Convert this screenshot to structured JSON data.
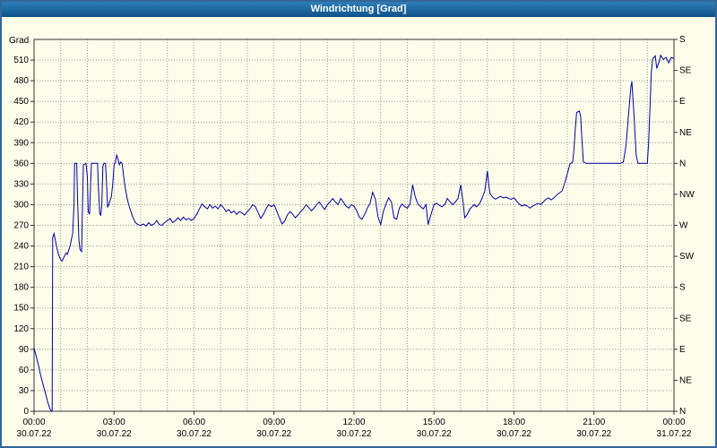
{
  "window": {
    "title": "Windrichtung [Grad]"
  },
  "colors": {
    "background": "#FDFDEB",
    "border": "#336699",
    "titlebar_start": "#2F7EB8",
    "titlebar_end": "#0E5288",
    "title_text": "#FFFFFF",
    "line": "#0000A8",
    "grid": "#999999",
    "axis": "#333333",
    "tick_text": "#000000"
  },
  "chart_data": {
    "type": "line",
    "title": "Windrichtung [Grad]",
    "ylabel_left": "Grad",
    "xlabel": "",
    "grid": "dashed",
    "legend": "none",
    "ylim": [
      0,
      540
    ],
    "y_grid_step": 30,
    "xlim_hours": [
      0,
      24
    ],
    "x_minor_grid_hours": 1,
    "y_left_ticks": [
      0,
      30,
      60,
      90,
      120,
      150,
      180,
      210,
      240,
      270,
      300,
      330,
      360,
      390,
      420,
      450,
      480,
      510
    ],
    "y_right_ticks": [
      {
        "value": 0,
        "label": "N"
      },
      {
        "value": 45,
        "label": "NE"
      },
      {
        "value": 90,
        "label": "E"
      },
      {
        "value": 135,
        "label": "SE"
      },
      {
        "value": 180,
        "label": "S"
      },
      {
        "value": 225,
        "label": "SW"
      },
      {
        "value": 270,
        "label": "W"
      },
      {
        "value": 315,
        "label": "NW"
      },
      {
        "value": 360,
        "label": "N"
      },
      {
        "value": 405,
        "label": "NE"
      },
      {
        "value": 450,
        "label": "E"
      },
      {
        "value": 495,
        "label": "SE"
      },
      {
        "value": 540,
        "label": "S"
      }
    ],
    "x_major_ticks": [
      {
        "hour": 0,
        "time": "00:00",
        "date": "30.07.22"
      },
      {
        "hour": 3,
        "time": "03:00",
        "date": "30.07.22"
      },
      {
        "hour": 6,
        "time": "06:00",
        "date": "30.07.22"
      },
      {
        "hour": 9,
        "time": "09:00",
        "date": "30.07.22"
      },
      {
        "hour": 12,
        "time": "12:00",
        "date": "30.07.22"
      },
      {
        "hour": 15,
        "time": "15:00",
        "date": "30.07.22"
      },
      {
        "hour": 18,
        "time": "18:00",
        "date": "30.07.22"
      },
      {
        "hour": 21,
        "time": "21:00",
        "date": "30.07.22"
      },
      {
        "hour": 24,
        "time": "00:00",
        "date": "31.07.22"
      }
    ],
    "series": [
      {
        "name": "windrichtung",
        "points": [
          [
            0,
            92
          ],
          [
            0.08,
            80
          ],
          [
            0.17,
            66
          ],
          [
            0.25,
            52
          ],
          [
            0.33,
            40
          ],
          [
            0.42,
            27
          ],
          [
            0.5,
            15
          ],
          [
            0.58,
            5
          ],
          [
            0.65,
            0
          ],
          [
            0.68,
            0
          ],
          [
            0.7,
            252
          ],
          [
            0.75,
            258
          ],
          [
            0.8,
            248
          ],
          [
            0.85,
            238
          ],
          [
            0.9,
            230
          ],
          [
            0.95,
            224
          ],
          [
            1,
            220
          ],
          [
            1.05,
            218
          ],
          [
            1.1,
            222
          ],
          [
            1.15,
            226
          ],
          [
            1.2,
            230
          ],
          [
            1.25,
            228
          ],
          [
            1.3,
            234
          ],
          [
            1.35,
            240
          ],
          [
            1.4,
            250
          ],
          [
            1.45,
            258
          ],
          [
            1.5,
            300
          ],
          [
            1.52,
            360
          ],
          [
            1.6,
            360
          ],
          [
            1.63,
            310
          ],
          [
            1.68,
            250
          ],
          [
            1.72,
            235
          ],
          [
            1.78,
            232
          ],
          [
            1.82,
            300
          ],
          [
            1.85,
            358
          ],
          [
            1.95,
            360
          ],
          [
            2,
            340
          ],
          [
            2.03,
            290
          ],
          [
            2.08,
            286
          ],
          [
            2.12,
            330
          ],
          [
            2.15,
            360
          ],
          [
            2.38,
            360
          ],
          [
            2.42,
            320
          ],
          [
            2.46,
            288
          ],
          [
            2.5,
            284
          ],
          [
            2.54,
            300
          ],
          [
            2.58,
            356
          ],
          [
            2.62,
            360
          ],
          [
            2.68,
            360
          ],
          [
            2.72,
            330
          ],
          [
            2.76,
            296
          ],
          [
            2.8,
            300
          ],
          [
            2.85,
            306
          ],
          [
            2.9,
            312
          ],
          [
            2.95,
            330
          ],
          [
            3,
            358
          ],
          [
            3.05,
            362
          ],
          [
            3.1,
            372
          ],
          [
            3.15,
            366
          ],
          [
            3.2,
            358
          ],
          [
            3.25,
            362
          ],
          [
            3.3,
            360
          ],
          [
            3.35,
            344
          ],
          [
            3.4,
            330
          ],
          [
            3.45,
            318
          ],
          [
            3.5,
            308
          ],
          [
            3.55,
            300
          ],
          [
            3.6,
            294
          ],
          [
            3.65,
            288
          ],
          [
            3.7,
            282
          ],
          [
            3.75,
            278
          ],
          [
            3.8,
            274
          ],
          [
            3.9,
            271
          ],
          [
            4,
            270
          ],
          [
            4.1,
            272
          ],
          [
            4.2,
            269
          ],
          [
            4.3,
            274
          ],
          [
            4.4,
            270
          ],
          [
            4.5,
            272
          ],
          [
            4.6,
            277
          ],
          [
            4.7,
            271
          ],
          [
            4.8,
            270
          ],
          [
            4.9,
            274
          ],
          [
            5,
            277
          ],
          [
            5.1,
            280
          ],
          [
            5.2,
            274
          ],
          [
            5.3,
            277
          ],
          [
            5.4,
            281
          ],
          [
            5.5,
            277
          ],
          [
            5.6,
            282
          ],
          [
            5.7,
            278
          ],
          [
            5.8,
            280
          ],
          [
            5.9,
            277
          ],
          [
            6,
            280
          ],
          [
            6.1,
            286
          ],
          [
            6.2,
            294
          ],
          [
            6.3,
            301
          ],
          [
            6.4,
            297
          ],
          [
            6.5,
            294
          ],
          [
            6.6,
            300
          ],
          [
            6.7,
            295
          ],
          [
            6.8,
            298
          ],
          [
            6.9,
            294
          ],
          [
            7,
            300
          ],
          [
            7.1,
            296
          ],
          [
            7.2,
            290
          ],
          [
            7.3,
            293
          ],
          [
            7.4,
            288
          ],
          [
            7.5,
            291
          ],
          [
            7.6,
            286
          ],
          [
            7.7,
            290
          ],
          [
            7.8,
            288
          ],
          [
            7.9,
            285
          ],
          [
            8,
            290
          ],
          [
            8.1,
            294
          ],
          [
            8.2,
            300
          ],
          [
            8.3,
            297
          ],
          [
            8.4,
            289
          ],
          [
            8.5,
            280
          ],
          [
            8.6,
            286
          ],
          [
            8.7,
            294
          ],
          [
            8.8,
            300
          ],
          [
            8.9,
            297
          ],
          [
            9,
            300
          ],
          [
            9.1,
            291
          ],
          [
            9.2,
            281
          ],
          [
            9.3,
            272
          ],
          [
            9.4,
            276
          ],
          [
            9.5,
            285
          ],
          [
            9.6,
            290
          ],
          [
            9.7,
            286
          ],
          [
            9.8,
            281
          ],
          [
            9.9,
            285
          ],
          [
            10,
            290
          ],
          [
            10.1,
            294
          ],
          [
            10.2,
            300
          ],
          [
            10.3,
            296
          ],
          [
            10.4,
            291
          ],
          [
            10.5,
            295
          ],
          [
            10.6,
            300
          ],
          [
            10.7,
            304
          ],
          [
            10.8,
            298
          ],
          [
            10.9,
            293
          ],
          [
            11,
            300
          ],
          [
            11.1,
            304
          ],
          [
            11.2,
            309
          ],
          [
            11.3,
            304
          ],
          [
            11.4,
            300
          ],
          [
            11.5,
            309
          ],
          [
            11.6,
            304
          ],
          [
            11.7,
            298
          ],
          [
            11.8,
            295
          ],
          [
            11.9,
            300
          ],
          [
            12,
            298
          ],
          [
            12.1,
            291
          ],
          [
            12.2,
            282
          ],
          [
            12.3,
            279
          ],
          [
            12.4,
            286
          ],
          [
            12.5,
            295
          ],
          [
            12.6,
            302
          ],
          [
            12.7,
            318
          ],
          [
            12.8,
            308
          ],
          [
            12.9,
            282
          ],
          [
            13,
            271
          ],
          [
            13.1,
            290
          ],
          [
            13.2,
            301
          ],
          [
            13.3,
            310
          ],
          [
            13.4,
            304
          ],
          [
            13.5,
            281
          ],
          [
            13.6,
            279
          ],
          [
            13.7,
            295
          ],
          [
            13.8,
            301
          ],
          [
            13.9,
            297
          ],
          [
            14,
            295
          ],
          [
            14.1,
            301
          ],
          [
            14.2,
            329
          ],
          [
            14.3,
            311
          ],
          [
            14.4,
            301
          ],
          [
            14.5,
            297
          ],
          [
            14.6,
            294
          ],
          [
            14.7,
            300
          ],
          [
            14.78,
            271
          ],
          [
            14.85,
            281
          ],
          [
            14.95,
            294
          ],
          [
            15,
            300
          ],
          [
            15.1,
            302
          ],
          [
            15.2,
            299
          ],
          [
            15.3,
            297
          ],
          [
            15.4,
            300
          ],
          [
            15.5,
            309
          ],
          [
            15.6,
            304
          ],
          [
            15.7,
            300
          ],
          [
            15.8,
            304
          ],
          [
            15.9,
            309
          ],
          [
            16,
            329
          ],
          [
            16.1,
            301
          ],
          [
            16.15,
            281
          ],
          [
            16.25,
            286
          ],
          [
            16.35,
            294
          ],
          [
            16.5,
            300
          ],
          [
            16.6,
            297
          ],
          [
            16.7,
            301
          ],
          [
            16.8,
            309
          ],
          [
            16.9,
            319
          ],
          [
            17,
            349
          ],
          [
            17.05,
            331
          ],
          [
            17.1,
            316
          ],
          [
            17.2,
            311
          ],
          [
            17.3,
            308
          ],
          [
            17.4,
            310
          ],
          [
            17.5,
            312
          ],
          [
            17.6,
            310
          ],
          [
            17.7,
            311
          ],
          [
            17.8,
            309
          ],
          [
            17.9,
            308
          ],
          [
            18,
            310
          ],
          [
            18.1,
            305
          ],
          [
            18.2,
            301
          ],
          [
            18.3,
            298
          ],
          [
            18.4,
            300
          ],
          [
            18.5,
            298
          ],
          [
            18.6,
            295
          ],
          [
            18.7,
            298
          ],
          [
            18.8,
            300
          ],
          [
            18.9,
            302
          ],
          [
            19,
            300
          ],
          [
            19.1,
            304
          ],
          [
            19.2,
            308
          ],
          [
            19.3,
            310
          ],
          [
            19.4,
            307
          ],
          [
            19.5,
            310
          ],
          [
            19.6,
            314
          ],
          [
            19.7,
            317
          ],
          [
            19.8,
            320
          ],
          [
            19.9,
            331
          ],
          [
            20,
            345
          ],
          [
            20.1,
            359
          ],
          [
            20.2,
            362
          ],
          [
            20.25,
            380
          ],
          [
            20.3,
            410
          ],
          [
            20.35,
            434
          ],
          [
            20.45,
            436
          ],
          [
            20.5,
            428
          ],
          [
            20.55,
            392
          ],
          [
            20.6,
            362
          ],
          [
            20.7,
            360
          ],
          [
            21,
            360
          ],
          [
            21.3,
            360
          ],
          [
            21.6,
            360
          ],
          [
            22,
            360
          ],
          [
            22.1,
            362
          ],
          [
            22.2,
            385
          ],
          [
            22.3,
            432
          ],
          [
            22.38,
            470
          ],
          [
            22.42,
            479
          ],
          [
            22.5,
            430
          ],
          [
            22.58,
            372
          ],
          [
            22.65,
            360
          ],
          [
            22.8,
            360
          ],
          [
            23,
            360
          ],
          [
            23.05,
            390
          ],
          [
            23.1,
            440
          ],
          [
            23.15,
            492
          ],
          [
            23.2,
            512
          ],
          [
            23.3,
            516
          ],
          [
            23.35,
            498
          ],
          [
            23.45,
            508
          ],
          [
            23.5,
            517
          ],
          [
            23.6,
            511
          ],
          [
            23.7,
            514
          ],
          [
            23.8,
            506
          ],
          [
            23.9,
            514
          ],
          [
            24,
            512
          ]
        ]
      }
    ]
  }
}
